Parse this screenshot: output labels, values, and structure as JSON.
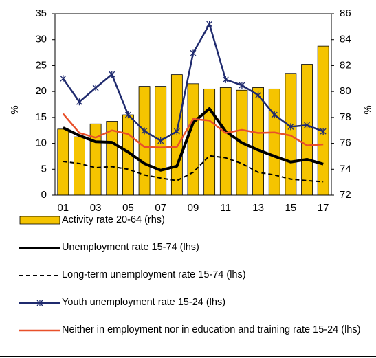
{
  "chart_data": {
    "type": "combo",
    "y_label": "%",
    "y2_label": "%",
    "categories": [
      "01",
      null,
      "03",
      null,
      "05",
      null,
      "07",
      null,
      "09",
      null,
      "11",
      null,
      "13",
      null,
      "15",
      null,
      "17"
    ],
    "ylim": [
      0,
      35
    ],
    "yticks": [
      0,
      5,
      10,
      15,
      20,
      25,
      30,
      35
    ],
    "y2lim": [
      72,
      86
    ],
    "y2ticks": [
      72,
      74,
      76,
      78,
      80,
      82,
      84,
      86
    ],
    "series": [
      {
        "name": "Activity rate 20-64 (rhs)",
        "type": "bar",
        "axis": "y2",
        "color": "#f5c400",
        "values": [
          77.1,
          76.5,
          77.5,
          77.7,
          78.2,
          80.4,
          80.4,
          81.3,
          80.6,
          80.2,
          80.3,
          80.1,
          80.3,
          80.2,
          81.4,
          82.1,
          83.5
        ]
      },
      {
        "name": "Unemployment rate 15-74 (lhs)",
        "type": "line",
        "color": "#000000",
        "width": 4,
        "values": [
          13.0,
          11.5,
          10.3,
          10.2,
          8.3,
          6.1,
          4.8,
          5.6,
          14.0,
          16.7,
          12.3,
          10.1,
          8.7,
          7.5,
          6.4,
          6.9,
          6.0
        ]
      },
      {
        "name": "Long-term unemployment rate 15-74 (lhs)",
        "type": "line",
        "color": "#000000",
        "width": 2,
        "dash": true,
        "values": [
          6.5,
          6.1,
          5.3,
          5.5,
          5.0,
          3.9,
          3.3,
          2.8,
          4.4,
          7.6,
          7.2,
          6.1,
          4.4,
          3.9,
          3.1,
          2.8,
          2.6
        ]
      },
      {
        "name": "Youth unemployment rate 15-24 (lhs)",
        "type": "line",
        "color": "#1f2a6e",
        "width": 2.5,
        "marker": "star",
        "values": [
          22.5,
          18.0,
          20.7,
          23.3,
          15.5,
          12.4,
          10.5,
          12.3,
          27.4,
          33.0,
          22.3,
          21.2,
          19.3,
          15.5,
          13.2,
          13.5,
          12.3
        ]
      },
      {
        "name": "Neither in employment nor in education and training rate 15-24 (lhs)",
        "type": "line",
        "color": "#e8502a",
        "width": 2.5,
        "values": [
          15.7,
          12.0,
          11.1,
          12.5,
          11.8,
          9.3,
          9.2,
          9.3,
          14.7,
          14.4,
          12.0,
          12.6,
          12.0,
          12.1,
          11.5,
          9.6,
          9.8
        ]
      }
    ]
  }
}
